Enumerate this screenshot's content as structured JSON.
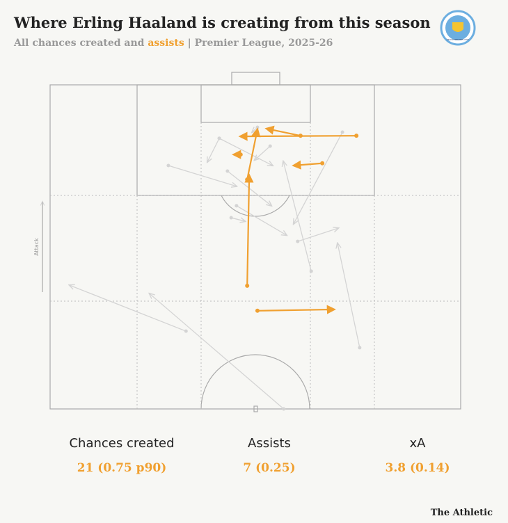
{
  "header": {
    "title": "Where Erling Haaland is creating from this season",
    "subtitle_start": "All chances created and ",
    "subtitle_highlight": "assists",
    "subtitle_end": " | Premier League, 2025-26",
    "logo_text": "MANCHESTER CITY"
  },
  "chart_data": {
    "type": "pass-map",
    "direction_label": "Attack",
    "xlim": [
      0,
      100
    ],
    "ylim": [
      0,
      100
    ],
    "series": [
      {
        "color": "#d4d4d4",
        "x": [
          71.2,
          53.6,
          41.2,
          41.2,
          28.8,
          45.4,
          63.6,
          44.1,
          60.3,
          75.4,
          33.1,
          56.9,
          43.2,
          50.5
        ],
        "y": [
          14.6,
          18.9,
          16.5,
          16.5,
          24.9,
          37.3,
          57.5,
          41.0,
          48.3,
          81.1,
          76.0,
          100,
          26.6,
          13.1
        ],
        "x_end": [
          59.3,
          49.8,
          38.3,
          54.2,
          45.4,
          57.6,
          56.8,
          47.5,
          70.2,
          70.0,
          4.7,
          24.2,
          53.9,
          49.2
        ],
        "y_end": [
          42.9,
          23.2,
          23.8,
          24.9,
          31.3,
          46.4,
          23.6,
          42.1,
          44.2,
          48.9,
          61.8,
          64.4,
          37.3,
          14.6
        ]
      },
      {
        "color": "#f0a030",
        "x": [
          74.6,
          61.0,
          48.0,
          48.0,
          66.3,
          46.4,
          50.5
        ],
        "y": [
          15.7,
          15.7,
          62.0,
          29.2,
          24.2,
          21.5,
          69.7
        ],
        "x_end": [
          46.3,
          52.7,
          48.5,
          50.5,
          59.3,
          44.7,
          69.2
        ],
        "y_end": [
          15.9,
          13.5,
          27.9,
          13.7,
          24.9,
          21.5,
          69.3
        ]
      }
    ]
  },
  "stats": [
    {
      "label": "Chances created",
      "value": "21 (0.75 p90)"
    },
    {
      "label": "Assists",
      "value": "7 (0.25)"
    },
    {
      "label": "xA",
      "value": "3.8 (0.14)"
    }
  ],
  "footer": {
    "brand": "The Athletic"
  }
}
